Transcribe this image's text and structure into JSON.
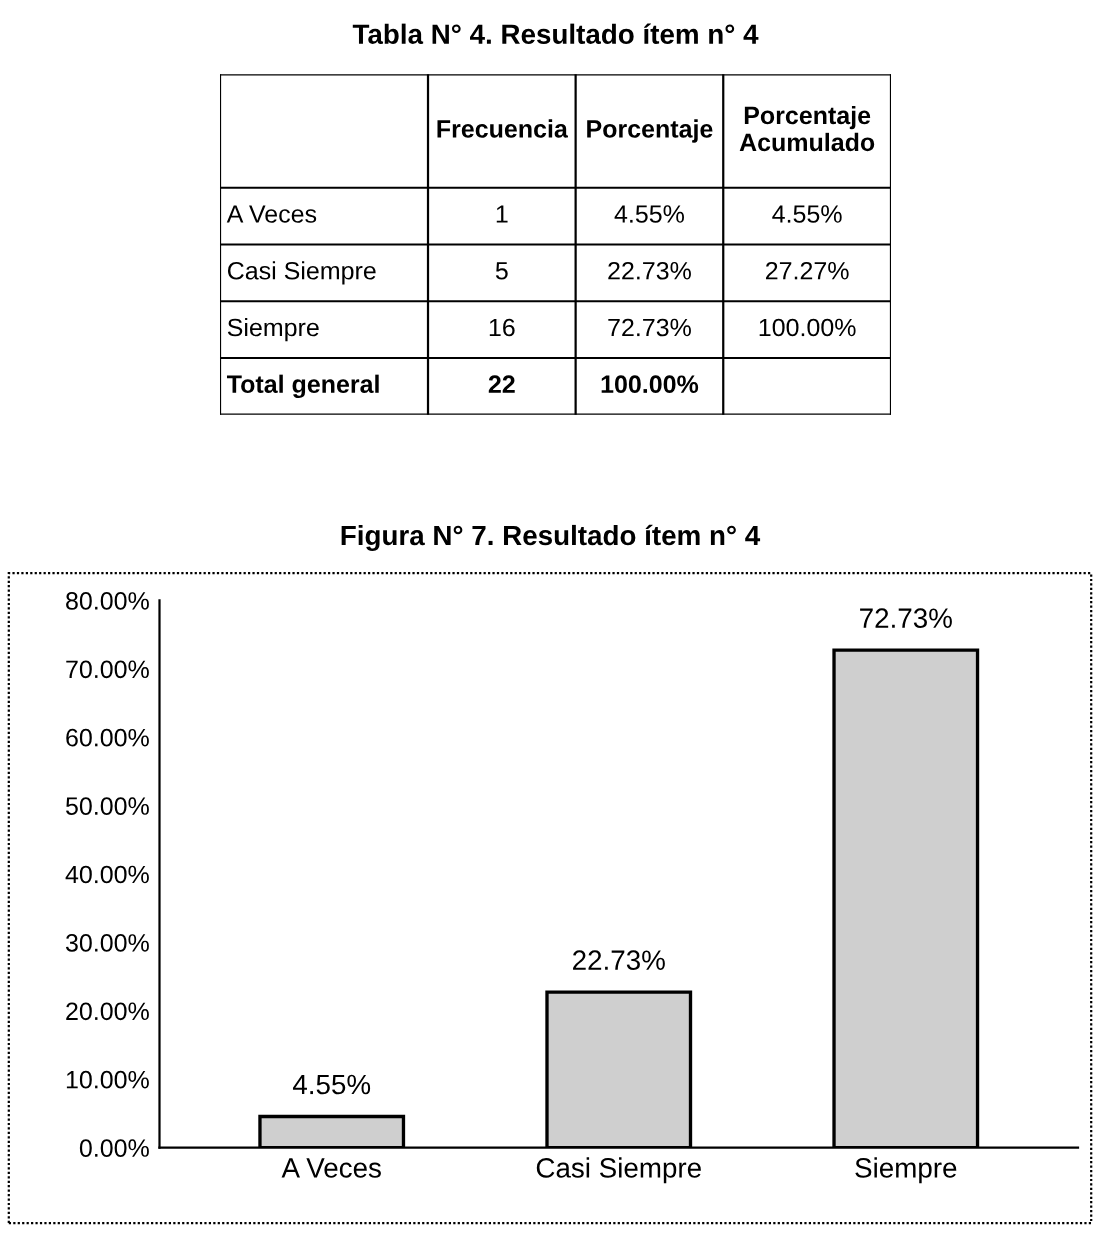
{
  "chart_data": [
    {
      "type": "other",
      "title": "Tabla N° 4. Resultado ítem n° 4",
      "annotations": [
        "Frecuencia",
        "Porcentaje",
        "Porcentaje\nAcumulado",
        "A Veces",
        "1",
        "4.55%",
        "4.55%",
        "Casi Siempre",
        "5",
        "22.73%",
        "27.27%",
        "Siempre",
        "16",
        "72.73%",
        "100.00%",
        "Total general",
        "22",
        "100.00%"
      ]
    },
    {
      "type": "bar",
      "title": "Figura N° 7. Resultado ítem n° 4",
      "categories": [
        "A Veces",
        "Casi Siempre",
        "Siempre"
      ],
      "values": [
        4.55,
        22.73,
        72.73
      ],
      "value_labels": [
        "4.55%",
        "22.73%",
        "72.73%"
      ],
      "color": "#cfcfcf",
      "ylim": [
        0,
        80
      ],
      "yticks": [
        {
          "value": 0,
          "label": "0.00%"
        },
        {
          "value": 10,
          "label": "10.00%"
        },
        {
          "value": 20,
          "label": "20.00%"
        },
        {
          "value": 30,
          "label": "30.00%"
        },
        {
          "value": 40,
          "label": "40.00%"
        },
        {
          "value": 50,
          "label": "50.00%"
        },
        {
          "value": 60,
          "label": "60.00%"
        },
        {
          "value": 70,
          "label": "70.00%"
        },
        {
          "value": 80,
          "label": "80.00%"
        }
      ],
      "grid": false,
      "legend": false
    }
  ]
}
